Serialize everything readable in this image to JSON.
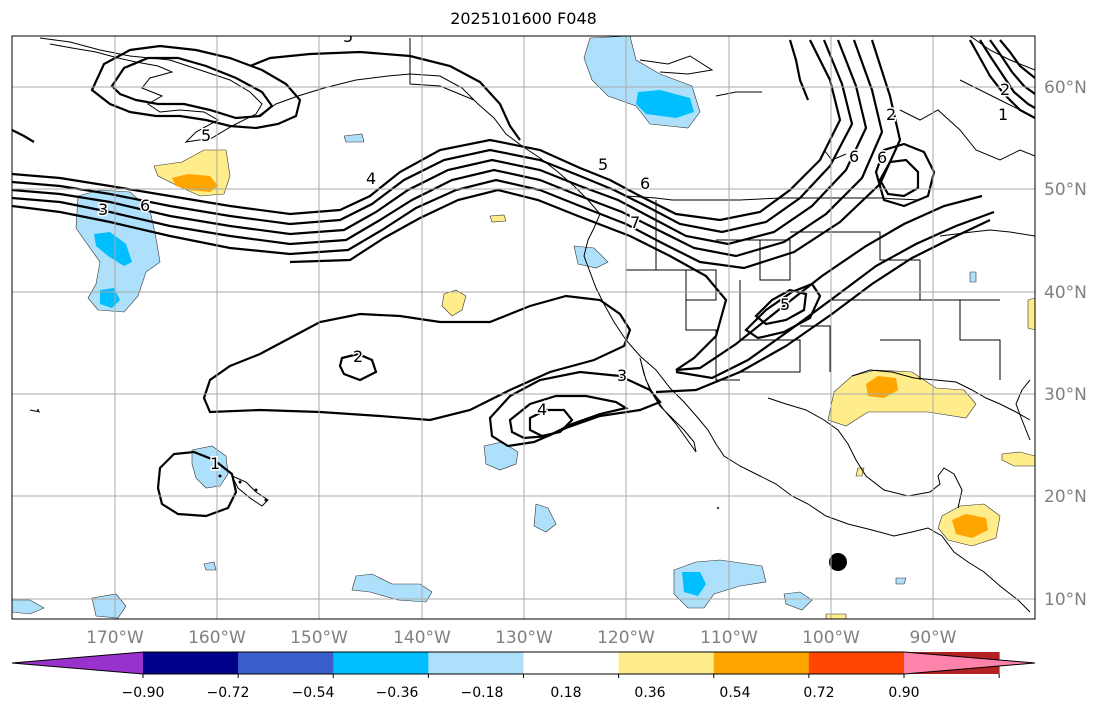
{
  "title": "2025101600 F048",
  "map": {
    "lon_labels": [
      "170°W",
      "160°W",
      "150°W",
      "140°W",
      "130°W",
      "120°W",
      "110°W",
      "100°W",
      "90°W"
    ],
    "lat_labels": [
      "60°N",
      "50°N",
      "40°N",
      "30°N",
      "20°N",
      "10°N"
    ],
    "contour_labels": [
      "5",
      "5",
      "6",
      "2",
      "4",
      "6",
      "3",
      "6",
      "5",
      "6",
      "7",
      "3",
      "2",
      "4",
      "1",
      "5",
      "2",
      "1"
    ],
    "marker": "storm-center-dot"
  },
  "colorbar": {
    "ticks": [
      "−0.90",
      "−0.72",
      "−0.54",
      "−0.36",
      "−0.18",
      "0.18",
      "0.36",
      "0.54",
      "0.72",
      "0.90"
    ],
    "colors": [
      "#9932cc",
      "#00008b",
      "#3a5fcd",
      "#00bfff",
      "#afe0fb",
      "#ffffff",
      "#ffec8b",
      "#ffa500",
      "#ff4500",
      "#b22222",
      "#ff82ab"
    ]
  },
  "colors": {
    "neg_light": "#afe0fb",
    "neg_mid": "#00bfff",
    "pos_light": "#ffec8b",
    "pos_mid": "#ffa500",
    "grid": "#aaaaaa",
    "axis_label": "#808080"
  }
}
